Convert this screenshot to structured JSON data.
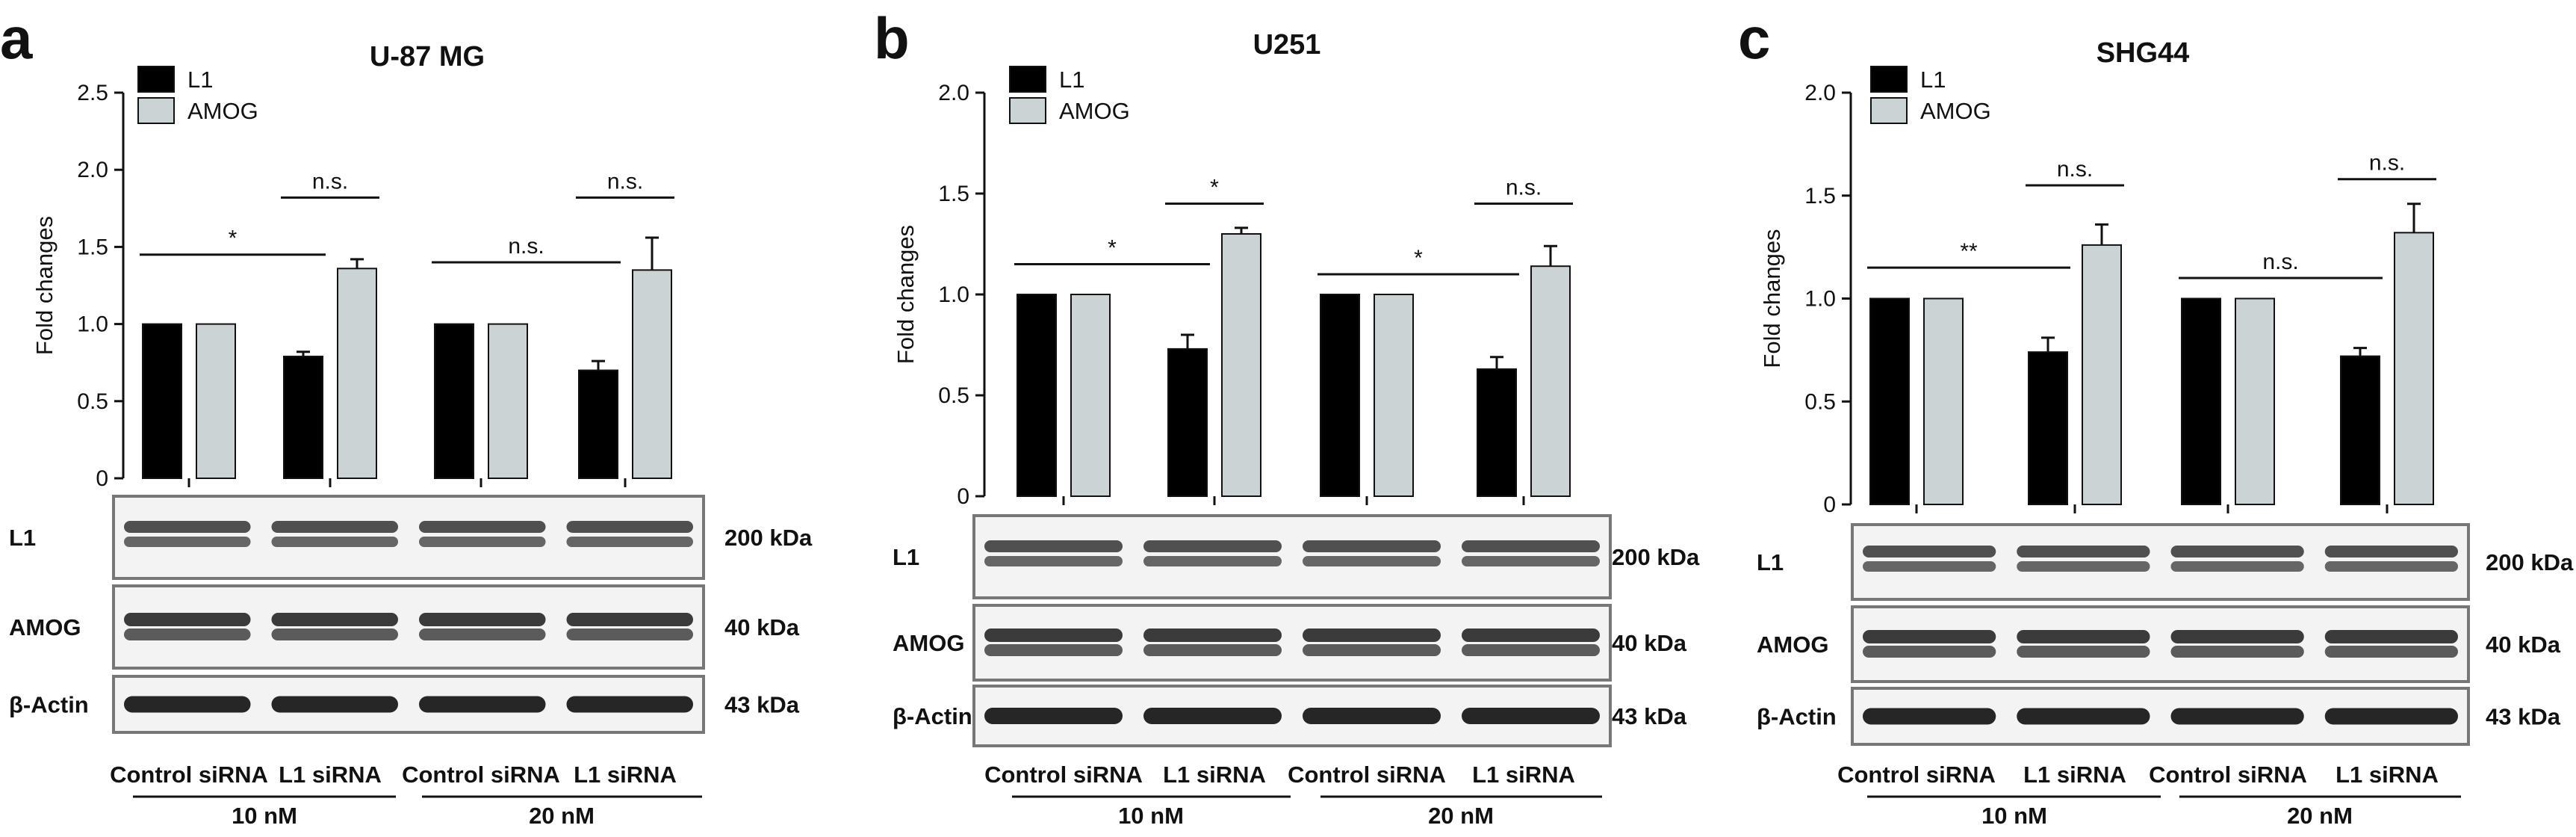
{
  "legend": [
    {
      "label": "L1",
      "color": "#000000"
    },
    {
      "label": "AMOG",
      "color": "#ccd3d4"
    }
  ],
  "blot_rows": [
    "L1",
    "AMOG",
    "β-Actin"
  ],
  "group_labels": [
    "Control siRNA",
    "L1 siRNA",
    "Control siRNA",
    "L1 siRNA"
  ],
  "concentrations": [
    "10 nM",
    "20 nM"
  ],
  "chart_data": [
    {
      "type": "bar",
      "panel": "a",
      "title": "U-87 MG",
      "ylabel": "Fold changes",
      "ylim": [
        0,
        2.5
      ],
      "yticks": [
        "0",
        "0.5",
        "1.0",
        "1.5",
        "2.0",
        "2.5"
      ],
      "series": [
        {
          "name": "L1",
          "values": [
            1.0,
            0.79,
            1.0,
            0.7
          ],
          "errors": [
            0,
            0.03,
            0,
            0.06
          ]
        },
        {
          "name": "AMOG",
          "values": [
            1.0,
            1.36,
            1.0,
            1.35
          ],
          "errors": [
            0,
            0.06,
            0,
            0.21
          ]
        }
      ],
      "significance": [
        {
          "text": "n.s.",
          "from": "2:L1",
          "to": "2:AMOG",
          "y": 1.82
        },
        {
          "text": "*",
          "from": "1:L1",
          "to": "2:L1",
          "y": 1.45
        },
        {
          "text": "n.s.",
          "from": "4:L1",
          "to": "4:AMOG",
          "y": 1.82
        },
        {
          "text": "n.s.",
          "from": "3:L1",
          "to": "4:L1",
          "y": 1.4
        }
      ],
      "kda": [
        "200 kDa",
        "40 kDa",
        "43 kDa"
      ]
    },
    {
      "type": "bar",
      "panel": "b",
      "title": "U251",
      "ylabel": "Fold changes",
      "ylim": [
        0,
        2.0
      ],
      "yticks": [
        "0",
        "0.5",
        "1.0",
        "1.5",
        "2.0"
      ],
      "series": [
        {
          "name": "L1",
          "values": [
            1.0,
            0.73,
            1.0,
            0.63
          ],
          "errors": [
            0,
            0.07,
            0,
            0.06
          ]
        },
        {
          "name": "AMOG",
          "values": [
            1.0,
            1.3,
            1.0,
            1.14
          ],
          "errors": [
            0,
            0.03,
            0,
            0.1
          ]
        }
      ],
      "significance": [
        {
          "text": "*",
          "from": "2:L1",
          "to": "2:AMOG",
          "y": 1.45
        },
        {
          "text": "*",
          "from": "1:L1",
          "to": "2:L1",
          "y": 1.15
        },
        {
          "text": "n.s.",
          "from": "4:L1",
          "to": "4:AMOG",
          "y": 1.45
        },
        {
          "text": "*",
          "from": "3:L1",
          "to": "4:L1",
          "y": 1.1
        }
      ],
      "kda": [
        "200 kDa",
        "40 kDa",
        "43 kDa"
      ]
    },
    {
      "type": "bar",
      "panel": "c",
      "title": "SHG44",
      "ylabel": "Fold changes",
      "ylim": [
        0,
        2.0
      ],
      "yticks": [
        "0",
        "0.5",
        "1.0",
        "1.5",
        "2.0"
      ],
      "series": [
        {
          "name": "L1",
          "values": [
            1.0,
            0.74,
            1.0,
            0.72
          ],
          "errors": [
            0,
            0.07,
            0,
            0.04
          ]
        },
        {
          "name": "AMOG",
          "values": [
            1.0,
            1.26,
            1.0,
            1.32
          ],
          "errors": [
            0,
            0.1,
            0,
            0.14
          ]
        }
      ],
      "significance": [
        {
          "text": "n.s.",
          "from": "2:L1",
          "to": "2:AMOG",
          "y": 1.55
        },
        {
          "text": "**",
          "from": "1:L1",
          "to": "2:L1",
          "y": 1.15
        },
        {
          "text": "n.s.",
          "from": "4:L1",
          "to": "4:AMOG",
          "y": 1.58
        },
        {
          "text": "n.s.",
          "from": "3:L1",
          "to": "4:L1",
          "y": 1.1
        }
      ],
      "kda": [
        "200 kDa",
        "40 kDa",
        "43 kDa"
      ]
    }
  ]
}
